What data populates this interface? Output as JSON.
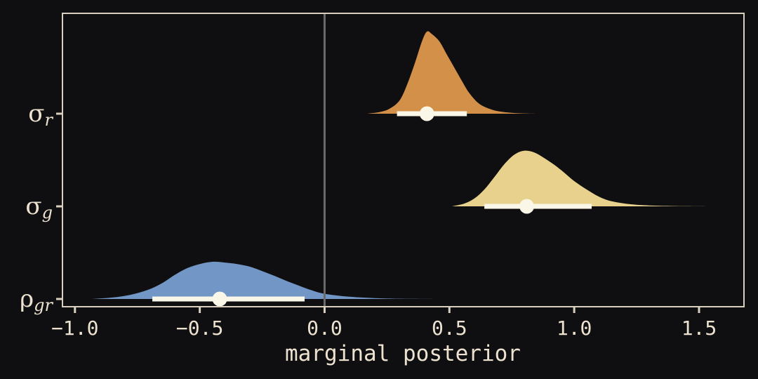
{
  "chart_data": {
    "type": "area",
    "xlabel": "marginal posterior",
    "xlim": [
      -1.05,
      1.68
    ],
    "x_ticks": [
      -1.0,
      -0.5,
      0.0,
      0.5,
      1.0,
      1.5
    ],
    "x_tick_labels": [
      "−1.0",
      "−0.5",
      "0.0",
      "0.5",
      "1.0",
      "1.5"
    ],
    "reference_line_x": 0.0,
    "colors": {
      "background": "#0f0f11",
      "frame": "#d8cfbf",
      "text": "#ece2cf",
      "interval": "#fbf7e8",
      "reference_line": "#6a6a6a"
    },
    "series": [
      {
        "symbol": "σ",
        "subscript": "r",
        "color": "#d39049",
        "median": 0.41,
        "interval": [
          0.29,
          0.57
        ],
        "density_x": [
          0.17,
          0.22,
          0.26,
          0.3,
          0.33,
          0.36,
          0.39,
          0.41,
          0.43,
          0.46,
          0.49,
          0.52,
          0.55,
          0.58,
          0.62,
          0.67,
          0.72,
          0.78,
          0.85
        ],
        "density_y": [
          0.0,
          0.02,
          0.06,
          0.16,
          0.35,
          0.6,
          0.88,
          1.0,
          0.97,
          0.88,
          0.72,
          0.56,
          0.4,
          0.25,
          0.12,
          0.05,
          0.02,
          0.005,
          0.0
        ]
      },
      {
        "symbol": "σ",
        "subscript": "g",
        "color": "#e8d18c",
        "median": 0.81,
        "interval": [
          0.64,
          1.07
        ],
        "density_x": [
          0.51,
          0.56,
          0.6,
          0.64,
          0.68,
          0.72,
          0.76,
          0.8,
          0.84,
          0.88,
          0.92,
          0.96,
          1.0,
          1.05,
          1.1,
          1.15,
          1.22,
          1.3,
          1.4,
          1.56
        ],
        "density_y": [
          0.0,
          0.05,
          0.14,
          0.3,
          0.52,
          0.75,
          0.92,
          0.99,
          0.96,
          0.86,
          0.74,
          0.6,
          0.45,
          0.3,
          0.17,
          0.09,
          0.04,
          0.015,
          0.005,
          0.0
        ]
      },
      {
        "symbol": "ρ",
        "subscript": "gr",
        "color": "#7296c6",
        "median": -0.42,
        "interval": [
          -0.69,
          -0.08
        ],
        "density_x": [
          -0.93,
          -0.85,
          -0.78,
          -0.71,
          -0.65,
          -0.6,
          -0.55,
          -0.5,
          -0.45,
          -0.4,
          -0.35,
          -0.3,
          -0.25,
          -0.2,
          -0.15,
          -0.1,
          -0.05,
          0.0,
          0.1,
          0.2,
          0.3,
          0.47
        ],
        "density_y": [
          0.0,
          0.04,
          0.11,
          0.24,
          0.43,
          0.65,
          0.83,
          0.94,
          1.0,
          0.98,
          0.94,
          0.87,
          0.75,
          0.62,
          0.48,
          0.35,
          0.23,
          0.14,
          0.06,
          0.025,
          0.008,
          0.0
        ]
      }
    ]
  }
}
